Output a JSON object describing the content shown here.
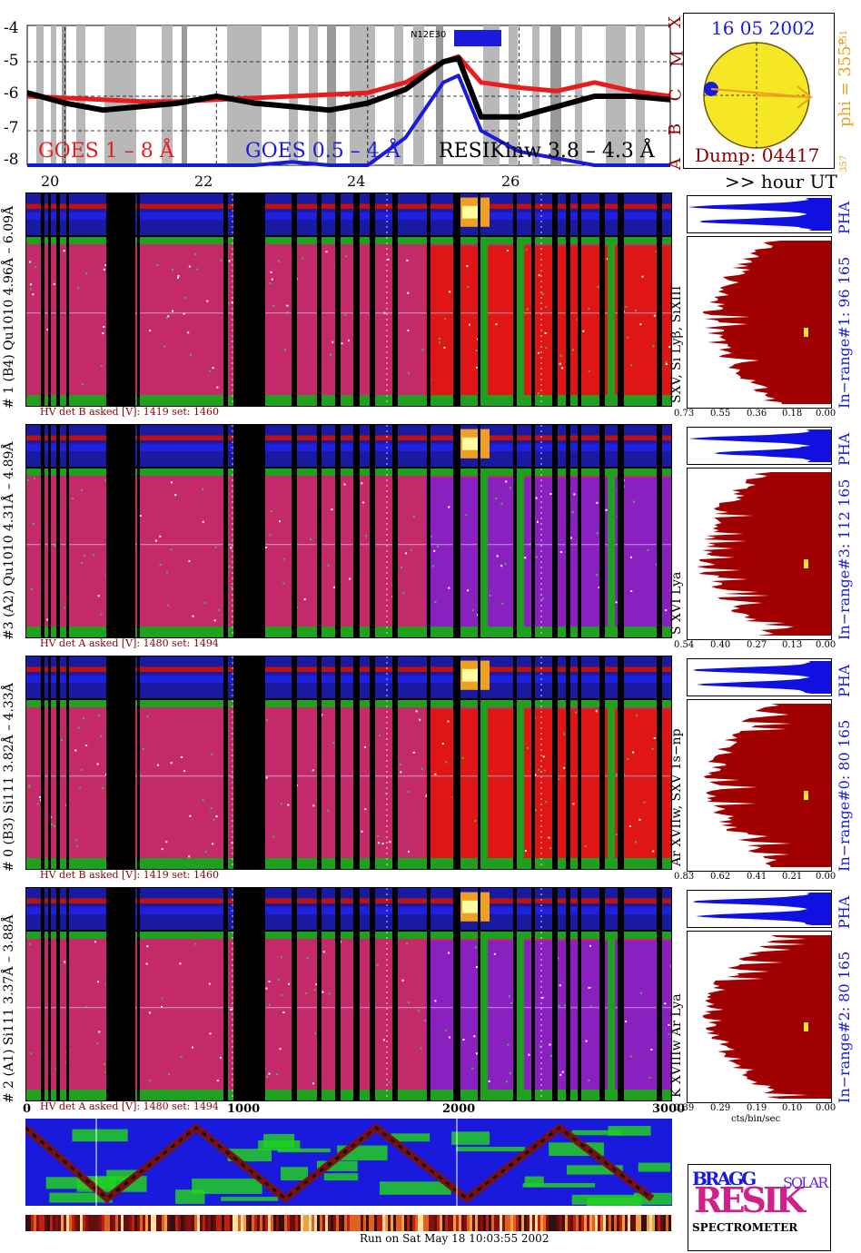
{
  "goes": {
    "y_ticks": [
      "-4",
      "-5",
      "-6",
      "-7",
      "-8"
    ],
    "class_letters": [
      "X",
      "M",
      "C",
      "B",
      "A"
    ],
    "legend_goes_long": "GOES 1 – 8 Å",
    "legend_goes_short": "GOES 0.5 – 4 Å",
    "legend_resik": "RESIKinw 3.8 – 4.3 Å",
    "region_label": "N12E30",
    "x_ticks": [
      "20",
      "22",
      "24",
      "26"
    ],
    "hour_label": ">> hour UT"
  },
  "sun": {
    "date": "16 05 2002",
    "dump": "Dump: 04417",
    "phi": "phi = 355°",
    "phi_small": "351",
    "phi_bottom": "357"
  },
  "channels": [
    {
      "label": "# 1 (B4) Qu1010 4.96Å – 6.09Å",
      "hv": "HV det B asked [V]:  1419 set:  1460",
      "lines": "SXV, Si Lyβ, SiXIII",
      "inrange": "In−range#1:  96 165",
      "pha": "PHA",
      "hist_ticks": [
        "0.73",
        "0.55",
        "0.36",
        "0.18",
        "0.00"
      ]
    },
    {
      "label": "#3 (A2) Qu1010  4.31Å – 4.89Å",
      "hv": "HV det A asked [V]:  1480 set:  1494",
      "lines": "S XVI Lya",
      "inrange": "In−range#3:  112 165",
      "pha": "PHA",
      "hist_ticks": [
        "0.54",
        "0.40",
        "0.27",
        "0.13",
        "0.00"
      ]
    },
    {
      "label": "# 0 (B3) Si111  3.82Å – 4.33Å",
      "hv": "HV det B asked [V]:  1419 set:  1460",
      "lines": "Ar XVIIw,  SXV 1s−np",
      "inrange": "In−range#0:  80 165",
      "pha": "PHA",
      "hist_ticks": [
        "0.83",
        "0.62",
        "0.41",
        "0.21",
        "0.00"
      ]
    },
    {
      "label": "# 2 (A1) Si111  3.37Å – 3.88Å",
      "hv": "HV det A asked [V]:  1480 set:  1494",
      "lines": "K XVIIIw  Ar Lya",
      "inrange": "In−range#2:  80 165",
      "pha": "PHA",
      "hist_ticks": [
        "0.39",
        "0.29",
        "0.19",
        "0.10",
        "0.00"
      ]
    }
  ],
  "hist_unit": "cts/bin/sec",
  "bottom": {
    "x_ticks": [
      "0",
      "1000",
      "2000",
      "3000"
    ],
    "run_info": "Run on Sat May 18 10:03:55 2002"
  },
  "logo": {
    "bragg": "BRAGG",
    "resik": "RESIK",
    "solar": "SOLAR",
    "spectrometer": "SPECTROMETER"
  },
  "colors": {
    "goes_long": "#e81c1c",
    "goes_short": "#1a1adc",
    "resik": "#000000",
    "spectrum_red": "#e01515",
    "spectrum_magenta": "#c0207a",
    "spectrum_green": "#1fa01f",
    "hist_fill": "#a00000",
    "pha_fill": "#1010e0",
    "label_red": "#8b0000",
    "label_blue": "#1a1adc",
    "sun_yellow": "#f5e626",
    "orange": "#e8a020"
  },
  "chart_data": [
    {
      "type": "line",
      "title": "",
      "x": [
        19.5,
        20.0,
        20.5,
        21.0,
        21.5,
        22.0,
        22.5,
        23.0,
        23.5,
        24.0,
        24.5,
        25.0,
        25.2,
        25.5,
        26.0,
        26.5,
        27.0,
        27.5,
        28.0
      ],
      "series": [
        {
          "name": "GOES 1 – 8 Å",
          "values": [
            -6.0,
            -6.05,
            -6.1,
            -6.15,
            -6.15,
            -6.1,
            -6.05,
            -6.0,
            -5.95,
            -5.9,
            -5.6,
            -5.0,
            -4.85,
            -5.6,
            -5.75,
            -5.85,
            -5.6,
            -5.85,
            -6.0
          ]
        },
        {
          "name": "GOES 0.5 – 4 Å",
          "values": [
            -8.0,
            -8.0,
            -8.0,
            -8.0,
            -8.0,
            -8.0,
            -8.0,
            -7.9,
            -8.0,
            -8.0,
            -7.2,
            -5.6,
            -5.4,
            -7.0,
            -7.6,
            -7.8,
            -8.0,
            -8.0,
            -8.0
          ]
        },
        {
          "name": "RESIKinw 3.8 – 4.3 Å",
          "values": [
            -5.9,
            -6.2,
            -6.4,
            -6.3,
            -6.2,
            -6.0,
            -6.2,
            -6.3,
            -6.4,
            -6.2,
            -5.8,
            -5.0,
            -4.9,
            -6.6,
            -6.6,
            -6.3,
            -6.0,
            -6.0,
            -6.1
          ]
        }
      ],
      "xlabel": ">> hour UT",
      "ylim": [
        -8,
        -4
      ],
      "xlim": [
        19.5,
        28.0
      ]
    },
    {
      "type": "bar",
      "title": "In−range#1:  96 165",
      "xlabel": "cts/bin/sec",
      "xlim": [
        0.73,
        0.0
      ],
      "x_ticks": [
        0.73,
        0.55,
        0.36,
        0.18,
        0.0
      ]
    },
    {
      "type": "bar",
      "title": "In−range#3:  112 165",
      "xlabel": "cts/bin/sec",
      "xlim": [
        0.54,
        0.0
      ],
      "x_ticks": [
        0.54,
        0.4,
        0.27,
        0.13,
        0.0
      ]
    },
    {
      "type": "bar",
      "title": "In−range#0:  80 165",
      "xlabel": "cts/bin/sec",
      "xlim": [
        0.83,
        0.0
      ],
      "x_ticks": [
        0.83,
        0.62,
        0.41,
        0.21,
        0.0
      ]
    },
    {
      "type": "bar",
      "title": "In−range#2:  80 165",
      "xlabel": "cts/bin/sec",
      "xlim": [
        0.39,
        0.0
      ],
      "x_ticks": [
        0.39,
        0.29,
        0.19,
        0.1,
        0.0
      ]
    }
  ]
}
